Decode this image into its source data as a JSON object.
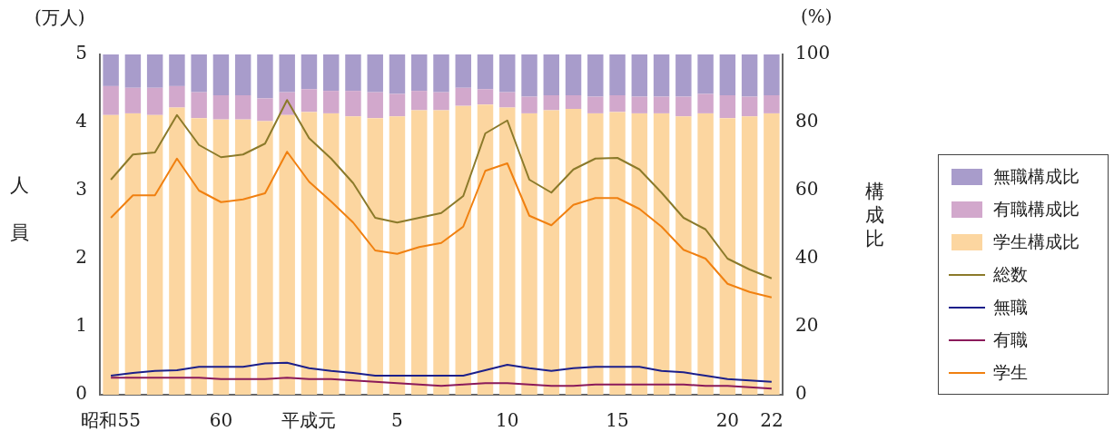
{
  "chart_data": {
    "type": "bar",
    "stacked": true,
    "legend": "right",
    "ylabel": "人員",
    "y2label": "構成比",
    "annotations": [
      "(万人)",
      "(%)"
    ],
    "categories": [
      "昭和55",
      null,
      null,
      null,
      null,
      "60",
      null,
      null,
      null,
      "平成元",
      null,
      null,
      null,
      "5",
      null,
      null,
      null,
      null,
      "10",
      null,
      null,
      null,
      null,
      "15",
      null,
      null,
      null,
      null,
      "20",
      null,
      "22"
    ],
    "ylim": [
      0,
      5
    ],
    "yticks": [
      0,
      1,
      2,
      3,
      4,
      5
    ],
    "y2lim": [
      0,
      100
    ],
    "y2ticks": [
      0,
      20,
      40,
      60,
      80,
      100
    ],
    "series": [
      {
        "name": "学生構成比",
        "axis": "y2",
        "color": "#fcd6a0",
        "values": [
          82.2,
          82.7,
          82.2,
          84.4,
          81.3,
          80.9,
          80.9,
          80.4,
          82.2,
          83.1,
          82.7,
          81.8,
          81.3,
          81.8,
          83.6,
          83.6,
          84.9,
          85.3,
          84.4,
          82.7,
          83.6,
          84.0,
          82.7,
          83.1,
          82.7,
          82.7,
          81.8,
          82.7,
          81.3,
          81.8,
          82.7
        ]
      },
      {
        "name": "有職構成比",
        "axis": "y2",
        "color": "#d2a8cc",
        "values": [
          8.5,
          7.5,
          8.0,
          6.3,
          7.6,
          7.1,
          7.1,
          6.7,
          6.7,
          6.7,
          6.6,
          7.5,
          7.6,
          6.6,
          5.7,
          5.3,
          5.3,
          4.5,
          4.5,
          4.9,
          4.4,
          4.0,
          4.9,
          4.9,
          4.9,
          4.9,
          5.8,
          5.7,
          6.7,
          5.8,
          5.3
        ]
      },
      {
        "name": "無職構成比",
        "axis": "y2",
        "color": "#a89ccb",
        "values": [
          9.3,
          9.8,
          9.8,
          9.3,
          11.1,
          12.0,
          12.0,
          12.9,
          11.1,
          10.2,
          10.7,
          10.7,
          11.1,
          11.6,
          10.7,
          11.1,
          9.8,
          10.2,
          11.1,
          12.4,
          12.0,
          12.0,
          12.4,
          12.0,
          12.4,
          12.4,
          12.4,
          11.6,
          12.0,
          12.4,
          12.0
        ]
      },
      {
        "name": "総数",
        "type": "line",
        "color": "#8b7a2a",
        "values": [
          3.16,
          3.53,
          3.56,
          4.11,
          3.67,
          3.49,
          3.53,
          3.69,
          4.33,
          3.77,
          3.47,
          3.11,
          2.6,
          2.53,
          2.6,
          2.67,
          2.92,
          3.84,
          4.03,
          3.16,
          2.97,
          3.31,
          3.47,
          3.48,
          3.31,
          2.97,
          2.6,
          2.43,
          2.0,
          1.84,
          1.71
        ]
      },
      {
        "name": "無職",
        "type": "line",
        "color": "#1c1f8a",
        "values": [
          0.28,
          0.32,
          0.35,
          0.36,
          0.41,
          0.41,
          0.41,
          0.46,
          0.47,
          0.39,
          0.35,
          0.32,
          0.28,
          0.28,
          0.28,
          0.28,
          0.28,
          0.36,
          0.44,
          0.39,
          0.35,
          0.39,
          0.41,
          0.41,
          0.41,
          0.35,
          0.33,
          0.28,
          0.23,
          0.21,
          0.19
        ]
      },
      {
        "name": "有職",
        "type": "line",
        "color": "#8b1a5a",
        "values": [
          0.25,
          0.25,
          0.25,
          0.25,
          0.25,
          0.23,
          0.23,
          0.23,
          0.25,
          0.23,
          0.23,
          0.21,
          0.19,
          0.17,
          0.15,
          0.13,
          0.15,
          0.17,
          0.17,
          0.15,
          0.13,
          0.13,
          0.15,
          0.15,
          0.15,
          0.15,
          0.15,
          0.13,
          0.13,
          0.11,
          0.09
        ]
      },
      {
        "name": "学生",
        "type": "line",
        "color": "#f08010",
        "values": [
          2.6,
          2.93,
          2.93,
          3.47,
          3.0,
          2.83,
          2.87,
          2.96,
          3.57,
          3.13,
          2.84,
          2.53,
          2.12,
          2.07,
          2.17,
          2.23,
          2.47,
          3.29,
          3.4,
          2.63,
          2.49,
          2.79,
          2.89,
          2.89,
          2.73,
          2.47,
          2.13,
          2.0,
          1.63,
          1.51,
          1.43
        ]
      }
    ]
  }
}
